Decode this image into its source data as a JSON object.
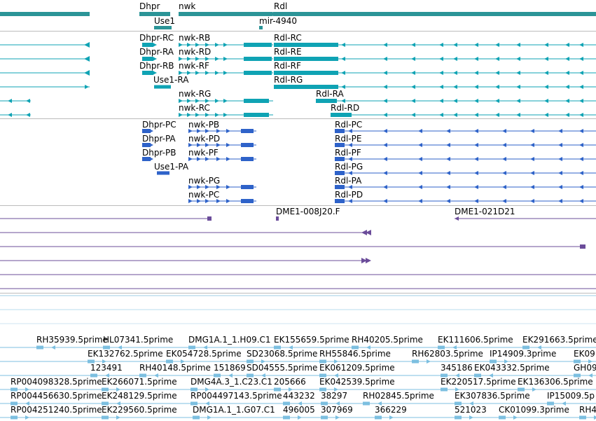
{
  "colors": {
    "gene": "#2b9497",
    "transcript": "#0fa3b4",
    "protein": "#2e62c9",
    "clone": "#6b4c9a",
    "est": "#7cbfe0",
    "separator": "#bcbcbc"
  },
  "gene_track": {
    "genes": [
      "Dhpr",
      "Use1",
      "nwk",
      "Rdl",
      "mir-4940"
    ]
  },
  "transcript_track": {
    "transcripts": [
      "Dhpr-RC",
      "Dhpr-RA",
      "Dhpr-RB",
      "Use1-RA",
      "nwk-RB",
      "nwk-RD",
      "nwk-RF",
      "nwk-RG",
      "nwk-RC",
      "Rdl-RC",
      "Rdl-RE",
      "Rdl-RF",
      "Rdl-RG",
      "Rdl-RA",
      "Rdl-RD"
    ]
  },
  "protein_track": {
    "proteins": [
      "Dhpr-PC",
      "Dhpr-PA",
      "Dhpr-PB",
      "Use1-PA",
      "nwk-PB",
      "nwk-PD",
      "nwk-PF",
      "nwk-PG",
      "nwk-PC",
      "Rdl-PC",
      "Rdl-PE",
      "Rdl-PF",
      "Rdl-PG",
      "Rdl-PA",
      "Rdl-PD"
    ]
  },
  "clone_track": {
    "clones": [
      "DME1-008J20.F",
      "DME1-021D21"
    ]
  },
  "est_track": {
    "ests": [
      "RH35939.5prime",
      "HL07341.5prime",
      "DMG1A.1_1.H09.C1",
      "EK155659.5prime",
      "RH40205.5prime",
      "EK111606.5prime",
      "EK291663.5prime",
      "EK132762.5prime",
      "EK054728.5prime",
      "SD23068.5prime",
      "RH55846.5prime",
      "RH62803.5prime",
      "IP14909.3prime",
      "EK09",
      "123491",
      "RH40148.5prime",
      "151869",
      "SD04555.5prime",
      "EK061209.5prime",
      "345186",
      "EK043332.5prime",
      "GH09",
      "RP004098328.5prime",
      "EK266071.5prime",
      "DMG4A.3_1.C23.C1",
      "205666",
      "EK042539.5prime",
      "EK220517.5prime",
      "EK136306.5prime",
      "RP004456630.5prime",
      "EK248129.5prime",
      "RP004497143.5prime",
      "443232",
      "38297",
      "RH02845.5prime",
      "EK307836.5prime",
      "IP15009.5p",
      "RP004251240.5prime",
      "EK229560.5prime",
      "DMG1A.1_1.G07.C1",
      "496005",
      "307969",
      "366229",
      "521023",
      "CK01099.3prime",
      "RH4"
    ]
  }
}
